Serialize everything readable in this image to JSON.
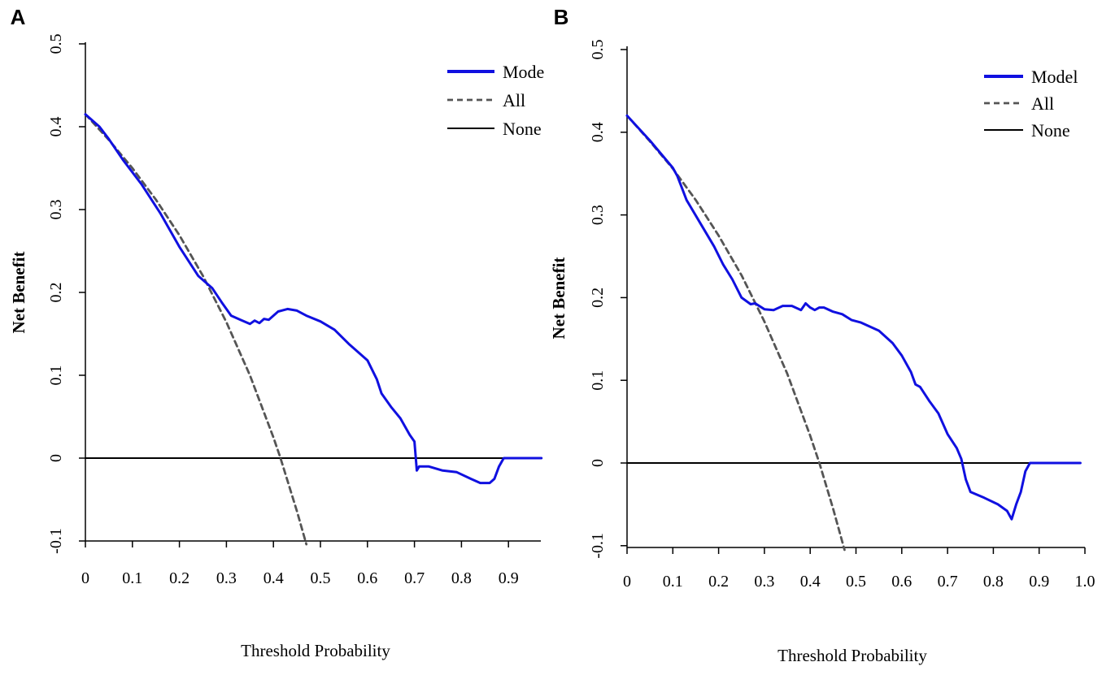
{
  "chart_data": [
    {
      "panel": "A",
      "type": "line",
      "xlabel": "Threshold Probability",
      "ylabel": "Net Benefit",
      "xlim": [
        0,
        0.97
      ],
      "ylim": [
        -0.1,
        0.5
      ],
      "xticks": [
        "0",
        "0.1",
        "0.2",
        "0.3",
        "0.4",
        "0.5",
        "0.6",
        "0.7",
        "0.8",
        "0.9"
      ],
      "yticks": [
        "-0.1",
        "0",
        "0.1",
        "0.2",
        "0.3",
        "0.4",
        "0.5"
      ],
      "legend": {
        "position": "top-right",
        "entries": [
          {
            "label": "Mode",
            "style": "solid",
            "color": "#1010e0"
          },
          {
            "label": "All",
            "style": "dashed",
            "color": "#555555"
          },
          {
            "label": "None",
            "style": "solid",
            "color": "#000000"
          }
        ]
      },
      "series": [
        {
          "name": "Mode",
          "color": "#1010e0",
          "x": [
            0,
            0.03,
            0.05,
            0.08,
            0.12,
            0.16,
            0.2,
            0.24,
            0.27,
            0.29,
            0.31,
            0.33,
            0.35,
            0.36,
            0.37,
            0.38,
            0.39,
            0.41,
            0.43,
            0.45,
            0.47,
            0.5,
            0.53,
            0.56,
            0.58,
            0.6,
            0.62,
            0.63,
            0.65,
            0.67,
            0.69,
            0.7,
            0.705,
            0.71,
            0.73,
            0.76,
            0.79,
            0.82,
            0.84,
            0.86,
            0.87,
            0.88,
            0.89,
            0.92,
            0.97
          ],
          "y": [
            0.415,
            0.4,
            0.385,
            0.36,
            0.33,
            0.295,
            0.255,
            0.22,
            0.205,
            0.188,
            0.172,
            0.167,
            0.162,
            0.166,
            0.163,
            0.168,
            0.167,
            0.177,
            0.18,
            0.178,
            0.172,
            0.165,
            0.155,
            0.138,
            0.128,
            0.118,
            0.095,
            0.078,
            0.062,
            0.048,
            0.028,
            0.02,
            -0.015,
            -0.01,
            -0.01,
            -0.015,
            -0.017,
            -0.025,
            -0.03,
            -0.03,
            -0.025,
            -0.01,
            0,
            0,
            0
          ]
        },
        {
          "name": "All",
          "color": "#555555",
          "x": [
            0,
            0.05,
            0.1,
            0.15,
            0.2,
            0.25,
            0.3,
            0.35,
            0.4,
            0.415,
            0.45,
            0.47
          ],
          "y": [
            0.415,
            0.384,
            0.35,
            0.312,
            0.269,
            0.22,
            0.164,
            0.1,
            0.025,
            0,
            -0.064,
            -0.104
          ]
        },
        {
          "name": "None",
          "color": "#000000",
          "x": [
            0,
            0.97
          ],
          "y": [
            0,
            0
          ]
        }
      ]
    },
    {
      "panel": "B",
      "type": "line",
      "xlabel": "Threshold Probability",
      "ylabel": "Net Benefit",
      "xlim": [
        0,
        1.0
      ],
      "ylim": [
        -0.1,
        0.5
      ],
      "xticks": [
        "0",
        "0.1",
        "0.2",
        "0.3",
        "0.4",
        "0.5",
        "0.6",
        "0.7",
        "0.8",
        "0.9",
        "1.0"
      ],
      "yticks": [
        "-0.1",
        "0",
        "0.1",
        "0.2",
        "0.3",
        "0.4",
        "0.5"
      ],
      "legend": {
        "position": "top-right",
        "entries": [
          {
            "label": "Model",
            "style": "solid",
            "color": "#1010e0"
          },
          {
            "label": "All",
            "style": "dashed",
            "color": "#555555"
          },
          {
            "label": "None",
            "style": "solid",
            "color": "#000000"
          }
        ]
      },
      "series": [
        {
          "name": "Model",
          "color": "#1010e0",
          "x": [
            0,
            0.05,
            0.1,
            0.11,
            0.13,
            0.16,
            0.19,
            0.21,
            0.23,
            0.25,
            0.27,
            0.28,
            0.3,
            0.32,
            0.34,
            0.36,
            0.38,
            0.39,
            0.4,
            0.41,
            0.42,
            0.43,
            0.45,
            0.47,
            0.49,
            0.51,
            0.53,
            0.55,
            0.58,
            0.6,
            0.62,
            0.63,
            0.64,
            0.66,
            0.68,
            0.7,
            0.72,
            0.73,
            0.74,
            0.75,
            0.78,
            0.81,
            0.83,
            0.84,
            0.85,
            0.86,
            0.87,
            0.88,
            0.9,
            0.99
          ],
          "y": [
            0.42,
            0.39,
            0.357,
            0.347,
            0.318,
            0.29,
            0.262,
            0.24,
            0.222,
            0.2,
            0.192,
            0.193,
            0.186,
            0.185,
            0.19,
            0.19,
            0.185,
            0.193,
            0.188,
            0.185,
            0.188,
            0.188,
            0.183,
            0.18,
            0.173,
            0.17,
            0.165,
            0.16,
            0.145,
            0.13,
            0.11,
            0.095,
            0.092,
            0.075,
            0.06,
            0.035,
            0.018,
            0.005,
            -0.02,
            -0.035,
            -0.042,
            -0.05,
            -0.058,
            -0.068,
            -0.05,
            -0.035,
            -0.01,
            0,
            0,
            0
          ]
        },
        {
          "name": "All",
          "color": "#555555",
          "x": [
            0,
            0.05,
            0.1,
            0.15,
            0.2,
            0.25,
            0.3,
            0.35,
            0.4,
            0.42,
            0.45,
            0.475
          ],
          "y": [
            0.42,
            0.389,
            0.356,
            0.318,
            0.275,
            0.227,
            0.171,
            0.108,
            0.033,
            0,
            -0.055,
            -0.105
          ]
        },
        {
          "name": "None",
          "color": "#000000",
          "x": [
            0,
            0.99
          ],
          "y": [
            0,
            0
          ]
        }
      ]
    }
  ]
}
